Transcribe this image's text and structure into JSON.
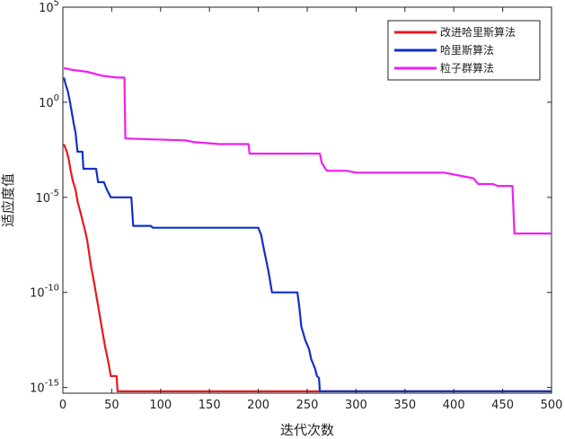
{
  "chart_data": {
    "type": "line",
    "xlabel": "迭代次数",
    "ylabel": "适应度值",
    "xlim": [
      0,
      500
    ],
    "ylim_log10": [
      -15.3,
      5
    ],
    "y_scale": "log",
    "grid": false,
    "legend_position": "top-right",
    "x_ticks": [
      0,
      50,
      100,
      150,
      200,
      250,
      300,
      350,
      400,
      450,
      500
    ],
    "y_ticks": [
      {
        "exp": 5,
        "base": "10",
        "sup": "5"
      },
      {
        "exp": 0,
        "base": "10",
        "sup": "0"
      },
      {
        "exp": -5,
        "base": "10",
        "sup": "-5"
      },
      {
        "exp": -10,
        "base": "10",
        "sup": "-10"
      },
      {
        "exp": -15,
        "base": "10",
        "sup": "-15"
      }
    ],
    "series": [
      {
        "name": "改进哈里斯算法",
        "color": "#e8181e",
        "points": [
          [
            1,
            -2.2
          ],
          [
            4,
            -2.6
          ],
          [
            6,
            -3.0
          ],
          [
            8,
            -3.6
          ],
          [
            10,
            -4.1
          ],
          [
            13,
            -4.6
          ],
          [
            15,
            -5.2
          ],
          [
            17,
            -5.6
          ],
          [
            19,
            -6.0
          ],
          [
            21,
            -6.4
          ],
          [
            23,
            -6.8
          ],
          [
            25,
            -7.3
          ],
          [
            27,
            -8.0
          ],
          [
            29,
            -8.7
          ],
          [
            31,
            -9.2
          ],
          [
            33,
            -9.8
          ],
          [
            35,
            -10.4
          ],
          [
            37,
            -11.0
          ],
          [
            39,
            -11.6
          ],
          [
            41,
            -12.2
          ],
          [
            43,
            -12.8
          ],
          [
            45,
            -13.3
          ],
          [
            47,
            -13.8
          ],
          [
            49,
            -14.4
          ],
          [
            55,
            -14.4
          ],
          [
            56,
            -15.2
          ],
          [
            500,
            -15.2
          ]
        ]
      },
      {
        "name": "哈里斯算法",
        "color": "#1030c8",
        "points": [
          [
            1,
            1.3
          ],
          [
            3,
            0.9
          ],
          [
            5,
            0.6
          ],
          [
            7,
            0.1
          ],
          [
            9,
            -0.5
          ],
          [
            11,
            -1.1
          ],
          [
            13,
            -1.6
          ],
          [
            15,
            -2.6
          ],
          [
            20,
            -2.6
          ],
          [
            21,
            -3.5
          ],
          [
            34,
            -3.5
          ],
          [
            36,
            -4.2
          ],
          [
            42,
            -4.2
          ],
          [
            45,
            -4.6
          ],
          [
            49,
            -5.0
          ],
          [
            70,
            -5.0
          ],
          [
            72,
            -6.5
          ],
          [
            90,
            -6.5
          ],
          [
            92,
            -6.6
          ],
          [
            188,
            -6.6
          ],
          [
            200,
            -6.6
          ],
          [
            203,
            -7.0
          ],
          [
            204,
            -7.3
          ],
          [
            206,
            -7.8
          ],
          [
            208,
            -8.3
          ],
          [
            210,
            -8.8
          ],
          [
            212,
            -9.4
          ],
          [
            214,
            -10.0
          ],
          [
            240,
            -10.0
          ],
          [
            242,
            -10.8
          ],
          [
            244,
            -11.8
          ],
          [
            248,
            -12.5
          ],
          [
            252,
            -13.0
          ],
          [
            254,
            -13.5
          ],
          [
            258,
            -14.0
          ],
          [
            260,
            -14.4
          ],
          [
            262,
            -14.5
          ],
          [
            263,
            -15.2
          ],
          [
            500,
            -15.2
          ]
        ]
      },
      {
        "name": "粒子群算法",
        "color": "#f01ef0",
        "points": [
          [
            1,
            1.8
          ],
          [
            10,
            1.7
          ],
          [
            25,
            1.6
          ],
          [
            40,
            1.4
          ],
          [
            55,
            1.3
          ],
          [
            63,
            1.3
          ],
          [
            64,
            -1.9
          ],
          [
            90,
            -1.95
          ],
          [
            125,
            -2.0
          ],
          [
            135,
            -2.1
          ],
          [
            160,
            -2.2
          ],
          [
            190,
            -2.2
          ],
          [
            191,
            -2.7
          ],
          [
            263,
            -2.7
          ],
          [
            265,
            -3.2
          ],
          [
            270,
            -3.6
          ],
          [
            290,
            -3.6
          ],
          [
            300,
            -3.7
          ],
          [
            390,
            -3.7
          ],
          [
            395,
            -3.75
          ],
          [
            410,
            -3.9
          ],
          [
            420,
            -4.0
          ],
          [
            425,
            -4.3
          ],
          [
            440,
            -4.3
          ],
          [
            445,
            -4.4
          ],
          [
            460,
            -4.4
          ],
          [
            462,
            -6.9
          ],
          [
            500,
            -6.9
          ]
        ]
      }
    ]
  }
}
